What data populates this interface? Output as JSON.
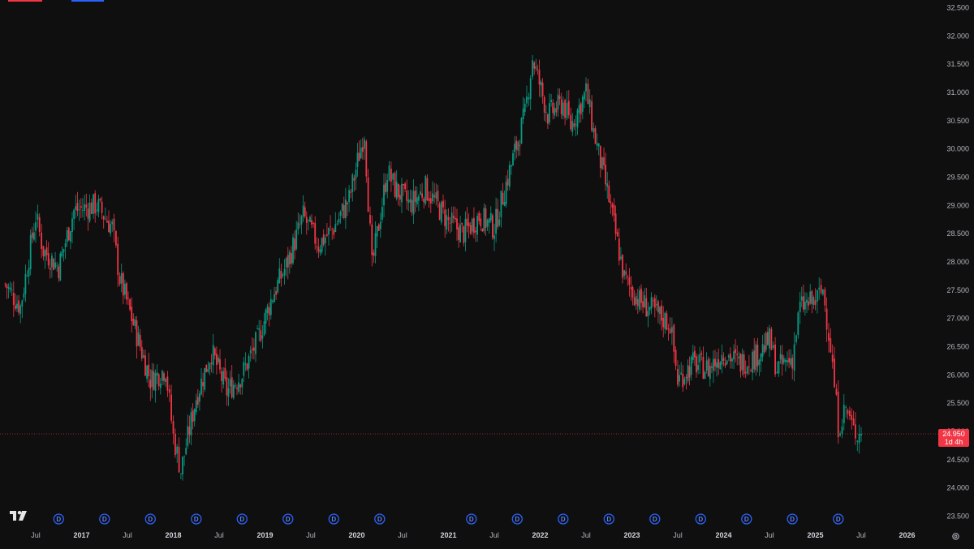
{
  "chart_data": {
    "type": "candlestick",
    "title": "",
    "xlabel": "",
    "ylabel": "",
    "ylim": [
      23.5,
      32.5
    ],
    "y_ticks": [
      "23.500",
      "24.000",
      "24.500",
      "25.000",
      "25.500",
      "26.000",
      "26.500",
      "27.000",
      "27.500",
      "28.000",
      "28.500",
      "29.000",
      "29.500",
      "30.000",
      "30.500",
      "31.000",
      "31.500",
      "32.000",
      "32.500"
    ],
    "x_ticks": [
      {
        "label": "Jul",
        "bold": false,
        "date": "2016-07"
      },
      {
        "label": "2017",
        "bold": true,
        "date": "2017-01"
      },
      {
        "label": "Jul",
        "bold": false,
        "date": "2017-07"
      },
      {
        "label": "2018",
        "bold": true,
        "date": "2018-01"
      },
      {
        "label": "Jul",
        "bold": false,
        "date": "2018-07"
      },
      {
        "label": "2019",
        "bold": true,
        "date": "2019-01"
      },
      {
        "label": "Jul",
        "bold": false,
        "date": "2019-07"
      },
      {
        "label": "2020",
        "bold": true,
        "date": "2020-01"
      },
      {
        "label": "Jul",
        "bold": false,
        "date": "2020-07"
      },
      {
        "label": "2021",
        "bold": true,
        "date": "2021-01"
      },
      {
        "label": "Jul",
        "bold": false,
        "date": "2021-07"
      },
      {
        "label": "2022",
        "bold": true,
        "date": "2022-01"
      },
      {
        "label": "Jul",
        "bold": false,
        "date": "2022-07"
      },
      {
        "label": "2023",
        "bold": true,
        "date": "2023-01"
      },
      {
        "label": "Jul",
        "bold": false,
        "date": "2023-07"
      },
      {
        "label": "2024",
        "bold": true,
        "date": "2024-01"
      },
      {
        "label": "Jul",
        "bold": false,
        "date": "2024-07"
      },
      {
        "label": "2025",
        "bold": true,
        "date": "2025-01"
      },
      {
        "label": "Jul",
        "bold": false,
        "date": "2025-07"
      },
      {
        "label": "2026",
        "bold": true,
        "date": "2026-01"
      }
    ],
    "dividend_marker_label": "D",
    "dividend_dates": [
      "2016-10",
      "2017-04",
      "2017-10",
      "2018-04",
      "2018-10",
      "2019-04",
      "2019-10",
      "2020-04",
      "2021-04",
      "2021-10",
      "2022-04",
      "2022-10",
      "2023-04",
      "2023-10",
      "2024-04",
      "2024-10",
      "2025-04"
    ],
    "last_price": 24.95,
    "last_price_label": "24.950",
    "countdown_label": "1d 4h",
    "colors": {
      "up": "#089981",
      "down": "#f23645",
      "background": "#0f0f0f",
      "axis_text": "#b2b5be",
      "price_line": "#f23645",
      "marker": "#2962ff"
    },
    "trend": [
      {
        "date": "2016-03",
        "close": 27.6
      },
      {
        "date": "2016-05",
        "close": 27.2
      },
      {
        "date": "2016-07",
        "close": 28.8
      },
      {
        "date": "2016-08",
        "close": 28.2
      },
      {
        "date": "2016-10",
        "close": 27.9
      },
      {
        "date": "2016-12",
        "close": 28.9
      },
      {
        "date": "2017-03",
        "close": 29.0
      },
      {
        "date": "2017-05",
        "close": 28.6
      },
      {
        "date": "2017-06",
        "close": 27.7
      },
      {
        "date": "2017-08",
        "close": 26.8
      },
      {
        "date": "2017-10",
        "close": 25.9
      },
      {
        "date": "2017-12",
        "close": 26.1
      },
      {
        "date": "2018-01",
        "close": 24.9
      },
      {
        "date": "2018-02",
        "close": 24.3
      },
      {
        "date": "2018-04",
        "close": 25.6
      },
      {
        "date": "2018-06",
        "close": 26.4
      },
      {
        "date": "2018-08",
        "close": 25.7
      },
      {
        "date": "2018-10",
        "close": 26.0
      },
      {
        "date": "2018-12",
        "close": 26.6
      },
      {
        "date": "2019-02",
        "close": 27.4
      },
      {
        "date": "2019-04",
        "close": 28.0
      },
      {
        "date": "2019-06",
        "close": 28.8
      },
      {
        "date": "2019-08",
        "close": 28.3
      },
      {
        "date": "2019-10",
        "close": 28.6
      },
      {
        "date": "2019-12",
        "close": 29.1
      },
      {
        "date": "2020-02",
        "close": 30.3
      },
      {
        "date": "2020-03",
        "close": 27.9
      },
      {
        "date": "2020-05",
        "close": 29.6
      },
      {
        "date": "2020-06",
        "close": 29.3
      },
      {
        "date": "2020-08",
        "close": 29.0
      },
      {
        "date": "2020-10",
        "close": 29.3
      },
      {
        "date": "2021-01",
        "close": 28.7
      },
      {
        "date": "2021-03",
        "close": 28.5
      },
      {
        "date": "2021-05",
        "close": 28.8
      },
      {
        "date": "2021-07",
        "close": 28.6
      },
      {
        "date": "2021-09",
        "close": 29.6
      },
      {
        "date": "2021-11",
        "close": 30.6
      },
      {
        "date": "2021-12",
        "close": 31.6
      },
      {
        "date": "2022-02",
        "close": 30.6
      },
      {
        "date": "2022-04",
        "close": 30.8
      },
      {
        "date": "2022-05",
        "close": 30.4
      },
      {
        "date": "2022-07",
        "close": 31.0
      },
      {
        "date": "2022-08",
        "close": 30.3
      },
      {
        "date": "2022-10",
        "close": 29.1
      },
      {
        "date": "2022-12",
        "close": 27.7
      },
      {
        "date": "2023-02",
        "close": 27.3
      },
      {
        "date": "2023-04",
        "close": 27.1
      },
      {
        "date": "2023-06",
        "close": 26.9
      },
      {
        "date": "2023-07",
        "close": 25.9
      },
      {
        "date": "2023-09",
        "close": 26.2
      },
      {
        "date": "2023-11",
        "close": 26.1
      },
      {
        "date": "2024-01",
        "close": 26.4
      },
      {
        "date": "2024-03",
        "close": 26.2
      },
      {
        "date": "2024-05",
        "close": 26.3
      },
      {
        "date": "2024-07",
        "close": 26.6
      },
      {
        "date": "2024-08",
        "close": 26.1
      },
      {
        "date": "2024-10",
        "close": 26.3
      },
      {
        "date": "2024-11",
        "close": 27.2
      },
      {
        "date": "2025-01",
        "close": 27.3
      },
      {
        "date": "2025-02",
        "close": 27.5
      },
      {
        "date": "2025-03",
        "close": 26.5
      },
      {
        "date": "2025-04",
        "close": 25.1
      },
      {
        "date": "2025-05",
        "close": 25.4
      },
      {
        "date": "2025-06",
        "close": 25.0
      },
      {
        "date": "2025-07",
        "close": 24.95
      }
    ]
  }
}
